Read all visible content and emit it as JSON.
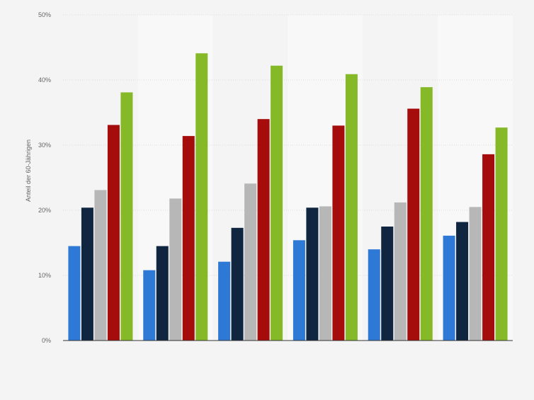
{
  "chart_data": {
    "type": "bar",
    "ylabel": "Anteil der 60-Jährigen",
    "ylim": [
      0,
      50
    ],
    "yticks": [
      0,
      10,
      20,
      30,
      40,
      50
    ],
    "ytick_labels": [
      "0%",
      "10%",
      "20%",
      "30%",
      "40%",
      "50%"
    ],
    "grid": true,
    "legend": "none",
    "groups": 6,
    "series": [
      {
        "values": [
          14.5,
          10.8,
          12.1,
          15.4,
          14.0,
          16.1
        ],
        "color": "#2e78d6"
      },
      {
        "values": [
          20.4,
          14.5,
          17.3,
          20.4,
          17.5,
          18.2
        ],
        "color": "#10253f"
      },
      {
        "values": [
          23.1,
          21.8,
          24.1,
          20.6,
          21.2,
          20.5
        ],
        "color": "#b7b7b7"
      },
      {
        "values": [
          33.1,
          31.4,
          34.0,
          33.0,
          35.6,
          28.6
        ],
        "color": "#a50d0d"
      },
      {
        "values": [
          38.1,
          44.1,
          42.2,
          40.9,
          38.9,
          32.7
        ],
        "color": "#85b928"
      }
    ],
    "band_colors": [
      "#f4f4f4",
      "#f8f8f8"
    ],
    "gridline_color": "#dcdcdc",
    "axis_color": "#333333",
    "label_color": "#666666"
  }
}
